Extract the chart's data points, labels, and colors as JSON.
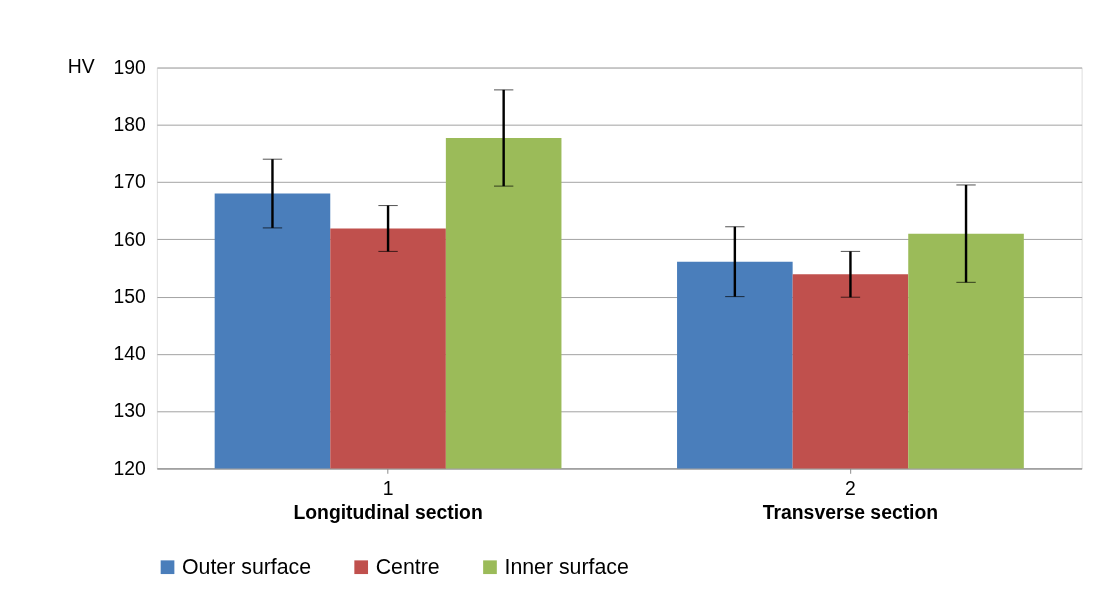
{
  "chart_data": {
    "type": "bar",
    "ylabel": "HV",
    "categories": [
      "1",
      "2"
    ],
    "series": [
      {
        "name": "Outer surface",
        "color": "#4a7ebb",
        "values": [
          168,
          156.1
        ],
        "errors": [
          6,
          6.1
        ]
      },
      {
        "name": "Centre",
        "color": "#c0504d",
        "values": [
          161.9,
          153.9
        ],
        "errors": [
          4,
          4
        ]
      },
      {
        "name": "Inner surface",
        "color": "#9bbb59",
        "values": [
          177.7,
          161
        ],
        "errors": [
          8.4,
          8.5
        ]
      }
    ],
    "ylim": [
      120,
      190
    ],
    "yticks": [
      120,
      130,
      140,
      150,
      160,
      170,
      180,
      190
    ],
    "grid": "y",
    "legend": "bottom",
    "annotations": [
      "Longitudinal section",
      "Transverse section"
    ]
  }
}
